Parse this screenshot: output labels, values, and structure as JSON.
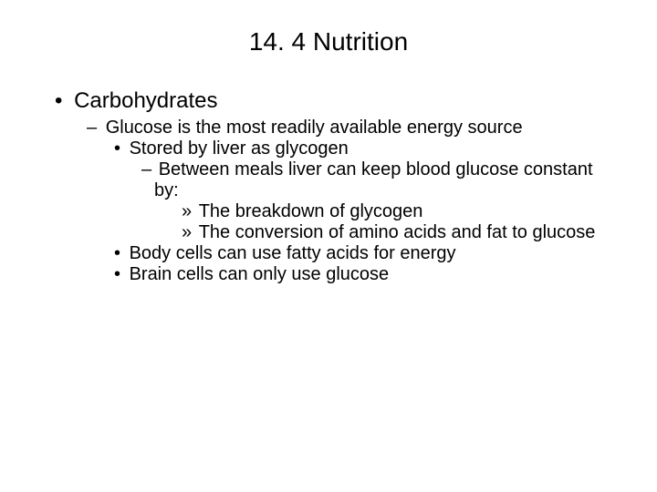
{
  "title": "14. 4 Nutrition",
  "l1": "Carbohydrates",
  "l2a": "Glucose is the most readily available energy source",
  "l3a": "Stored by liver as glycogen",
  "l4a": "Between meals liver can keep blood glucose constant by:",
  "l5a": "The breakdown of glycogen",
  "l5b": "The conversion of amino acids and fat to glucose",
  "l3b": "Body cells can use fatty acids for energy",
  "l3c": "Brain cells can only use glucose",
  "colors": {
    "background": "#ffffff",
    "text": "#000000"
  },
  "fonts": {
    "title_size": 28,
    "l1_size": 24,
    "body_size": 20,
    "family": "Arial"
  }
}
